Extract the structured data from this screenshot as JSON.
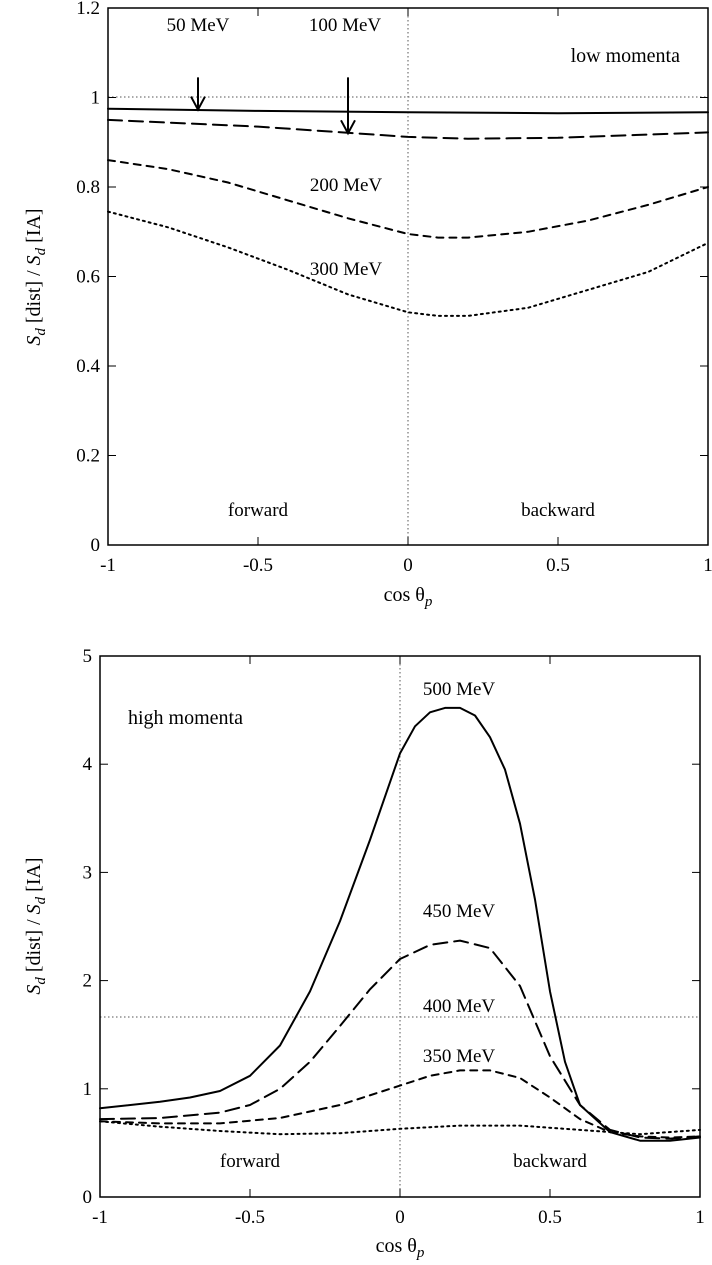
{
  "chart_data": [
    {
      "type": "line",
      "xlim": [
        -1,
        1
      ],
      "ylim": [
        0,
        1.2
      ],
      "xticks": [
        "-1",
        "-0.5",
        "0",
        "0.5",
        "1"
      ],
      "xtick_values": [
        -1,
        -0.5,
        0,
        0.5,
        1
      ],
      "yticks": [
        "0",
        "0.2",
        "0.4",
        "0.6",
        "0.8",
        "1",
        "1.2"
      ],
      "ytick_values": [
        0,
        0.2,
        0.4,
        0.6,
        0.8,
        1,
        1.2
      ],
      "xlabel": {
        "main": "cos θ",
        "sub": "p"
      },
      "ylabel": {
        "s1": "S",
        "d1": "d",
        "mid": " [dist] / ",
        "s2": "S",
        "d2": "d",
        "end": " [IA]"
      },
      "panel_label": "low momenta",
      "region_labels": {
        "left": "forward",
        "right": "backward"
      },
      "reference_lines": {
        "y": 1,
        "x": 0
      },
      "series": [
        {
          "label": "50 MeV",
          "style": "solid",
          "x": [
            -1,
            -0.5,
            0,
            0.5,
            1
          ],
          "y": [
            0.975,
            0.97,
            0.967,
            0.965,
            0.967
          ]
        },
        {
          "label": "100 MeV",
          "style": "long-dash",
          "x": [
            -1,
            -0.5,
            0,
            0.2,
            0.5,
            1
          ],
          "y": [
            0.95,
            0.935,
            0.912,
            0.908,
            0.91,
            0.922
          ]
        },
        {
          "label": "200 MeV",
          "style": "dash",
          "x": [
            -1,
            -0.8,
            -0.6,
            -0.4,
            -0.2,
            0,
            0.1,
            0.2,
            0.4,
            0.6,
            0.8,
            1
          ],
          "y": [
            0.86,
            0.84,
            0.81,
            0.77,
            0.73,
            0.695,
            0.687,
            0.687,
            0.7,
            0.725,
            0.76,
            0.8
          ]
        },
        {
          "label": "300 MeV",
          "style": "dot",
          "x": [
            -1,
            -0.8,
            -0.6,
            -0.4,
            -0.2,
            0,
            0.1,
            0.2,
            0.4,
            0.6,
            0.8,
            1
          ],
          "y": [
            0.745,
            0.71,
            0.665,
            0.615,
            0.56,
            0.52,
            0.512,
            0.512,
            0.53,
            0.57,
            0.61,
            0.675
          ]
        }
      ],
      "annotations": [
        {
          "text": "50 MeV",
          "arrow_x": -0.7,
          "arrow_y_from": 1.045,
          "arrow_y_to": 0.973
        },
        {
          "text": "100 MeV",
          "arrow_x": -0.2,
          "arrow_y_from": 1.045,
          "arrow_y_to": 0.92
        },
        {
          "text": "200 MeV"
        },
        {
          "text": "300 MeV"
        }
      ]
    },
    {
      "type": "line",
      "xlim": [
        -1,
        1
      ],
      "ylim": [
        0,
        5
      ],
      "xticks": [
        "-1",
        "-0.5",
        "0",
        "0.5",
        "1"
      ],
      "xtick_values": [
        -1,
        -0.5,
        0,
        0.5,
        1
      ],
      "yticks": [
        "0",
        "1",
        "2",
        "3",
        "4",
        "5"
      ],
      "ytick_values": [
        0,
        1,
        2,
        3,
        4,
        5
      ],
      "xlabel": {
        "main": "cos θ",
        "sub": "p"
      },
      "ylabel": {
        "s1": "S",
        "d1": "d",
        "mid": " [dist] / ",
        "s2": "S",
        "d2": "d",
        "end": " [IA]"
      },
      "panel_label": "high momenta",
      "region_labels": {
        "left": "forward",
        "right": "backward"
      },
      "reference_lines": {
        "y": 1,
        "x": 0
      },
      "series": [
        {
          "label": "500 MeV",
          "style": "solid",
          "x": [
            -1,
            -0.8,
            -0.7,
            -0.6,
            -0.5,
            -0.4,
            -0.3,
            -0.2,
            -0.1,
            0,
            0.05,
            0.1,
            0.15,
            0.2,
            0.25,
            0.3,
            0.35,
            0.4,
            0.45,
            0.5,
            0.55,
            0.6,
            0.7,
            0.8,
            0.9,
            1
          ],
          "y": [
            0.82,
            0.88,
            0.92,
            0.98,
            1.12,
            1.4,
            1.9,
            2.55,
            3.3,
            4.1,
            4.35,
            4.48,
            4.52,
            4.52,
            4.45,
            4.25,
            3.95,
            3.45,
            2.75,
            1.9,
            1.25,
            0.85,
            0.6,
            0.52,
            0.52,
            0.55
          ]
        },
        {
          "label": "450 MeV",
          "style": "long-dash",
          "x": [
            -1,
            -0.8,
            -0.6,
            -0.5,
            -0.4,
            -0.3,
            -0.2,
            -0.1,
            0,
            0.1,
            0.2,
            0.3,
            0.4,
            0.5,
            0.6,
            0.7,
            0.8,
            0.9,
            1
          ],
          "y": [
            0.72,
            0.73,
            0.78,
            0.85,
            1.0,
            1.25,
            1.58,
            1.92,
            2.2,
            2.33,
            2.37,
            2.3,
            1.95,
            1.3,
            0.85,
            0.62,
            0.55,
            0.54,
            0.56
          ]
        },
        {
          "label": "400 MeV",
          "style": "dash",
          "x": [
            -1,
            -0.8,
            -0.6,
            -0.4,
            -0.2,
            0,
            0.1,
            0.2,
            0.3,
            0.4,
            0.5,
            0.6,
            0.7,
            0.8,
            0.9,
            1
          ],
          "y": [
            0.7,
            0.68,
            0.68,
            0.73,
            0.85,
            1.03,
            1.12,
            1.17,
            1.17,
            1.1,
            0.92,
            0.72,
            0.6,
            0.56,
            0.55,
            0.56
          ]
        },
        {
          "label": "350 MeV",
          "style": "dot",
          "x": [
            -1,
            -0.8,
            -0.6,
            -0.4,
            -0.2,
            0,
            0.2,
            0.4,
            0.6,
            0.8,
            1
          ],
          "y": [
            0.7,
            0.65,
            0.61,
            0.58,
            0.59,
            0.63,
            0.66,
            0.66,
            0.62,
            0.58,
            0.62
          ]
        }
      ],
      "annotations": [
        {
          "text": "500 MeV"
        },
        {
          "text": "450 MeV"
        },
        {
          "text": "400 MeV"
        },
        {
          "text": "350 MeV"
        }
      ]
    }
  ]
}
